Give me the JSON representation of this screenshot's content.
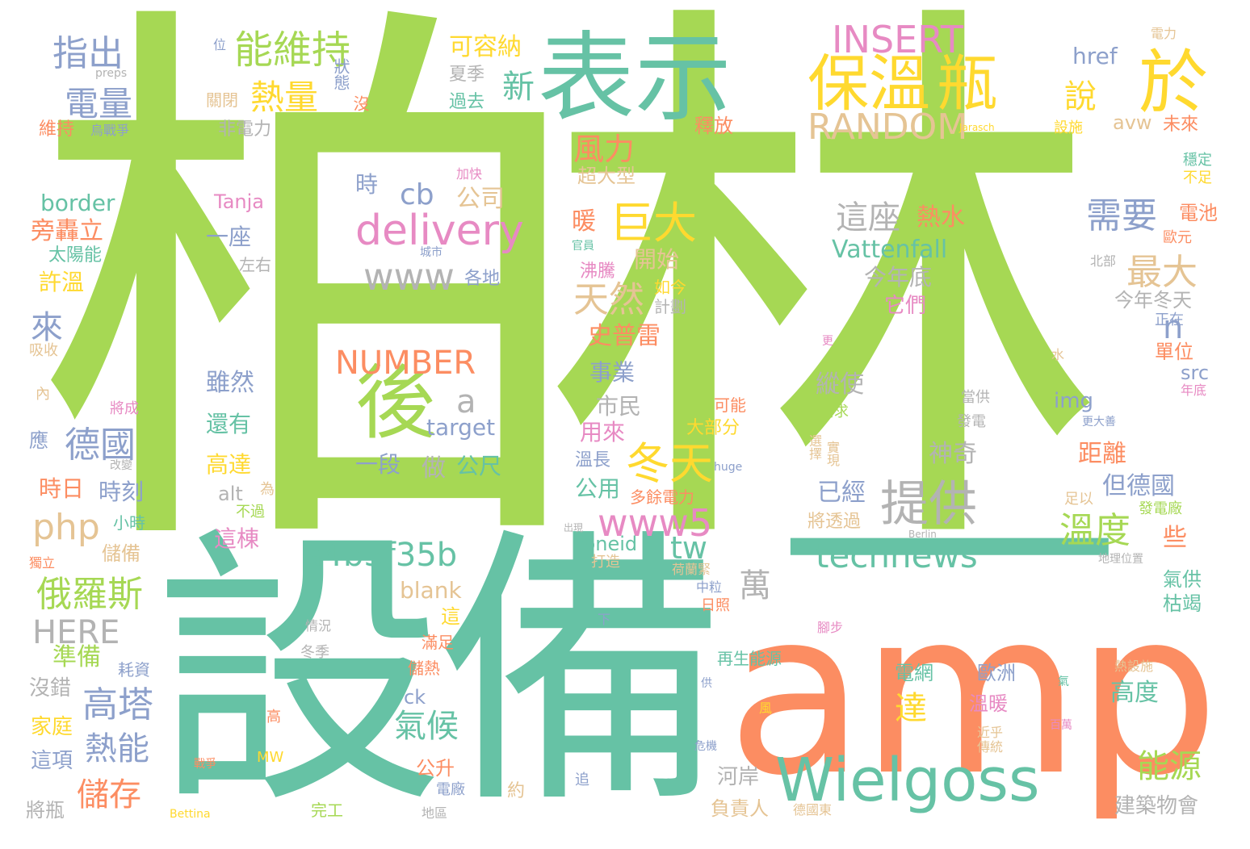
{
  "palette": {
    "green": "#a6d854",
    "teal": "#66c2a5",
    "orange": "#fc8d62",
    "blue": "#8da0cb",
    "pink": "#e78ac3",
    "yellow": "#ffd92f",
    "tan": "#e5c494",
    "gray": "#b3b3b3"
  },
  "words": [
    {
      "text": "柏林",
      "color": "#a6d854"
    },
    {
      "text": "設備",
      "color": "#66c2a5"
    },
    {
      "text": "amp",
      "color": "#fc8d62"
    },
    {
      "text": "一",
      "color": "#66c2a5"
    },
    {
      "text": "表示",
      "color": "#66c2a5"
    },
    {
      "text": "保溫",
      "color": "#ffd92f"
    },
    {
      "text": "瓶",
      "color": "#ffd92f"
    },
    {
      "text": "於",
      "color": "#ffd92f"
    },
    {
      "text": "Wielgoss",
      "color": "#66c2a5"
    },
    {
      "text": "後",
      "color": "#a6d854"
    },
    {
      "text": "delivery",
      "color": "#e78ac3"
    },
    {
      "text": "能維持",
      "color": "#a6d854"
    },
    {
      "text": "INSERT",
      "color": "#e78ac3"
    },
    {
      "text": "RANDOM",
      "color": "#e5c494"
    },
    {
      "text": "巨大",
      "color": "#ffd92f"
    },
    {
      "text": "冬天",
      "color": "#ffd92f"
    },
    {
      "text": "www5",
      "color": "#e78ac3"
    },
    {
      "text": "提供",
      "color": "#b3b3b3"
    },
    {
      "text": "technews",
      "color": "#66c2a5"
    },
    {
      "text": "a4b3f35b",
      "color": "#66c2a5"
    },
    {
      "text": "NUMBER",
      "color": "#fc8d62"
    },
    {
      "text": "www",
      "color": "#b3b3b3"
    },
    {
      "text": "指出",
      "color": "#8da0cb"
    },
    {
      "text": "電量",
      "color": "#8da0cb"
    },
    {
      "text": "熱量",
      "color": "#ffd92f"
    },
    {
      "text": "新",
      "color": "#66c2a5"
    },
    {
      "text": "說",
      "color": "#ffd92f"
    },
    {
      "text": "風力",
      "color": "#fc8d62"
    },
    {
      "text": "cb",
      "color": "#8da0cb"
    },
    {
      "text": "公司",
      "color": "#e5c494"
    },
    {
      "text": "時",
      "color": "#8da0cb"
    },
    {
      "text": "天然",
      "color": "#e5c494"
    },
    {
      "text": "最大",
      "color": "#e5c494"
    },
    {
      "text": "需要",
      "color": "#8da0cb"
    },
    {
      "text": "這座",
      "color": "#b3b3b3"
    },
    {
      "text": "熱水",
      "color": "#fc8d62"
    },
    {
      "text": "溫度",
      "color": "#a6d854"
    },
    {
      "text": "德國",
      "color": "#8da0cb"
    },
    {
      "text": "php",
      "color": "#e5c494"
    },
    {
      "text": "俄羅斯",
      "color": "#a6d854"
    },
    {
      "text": "HERE",
      "color": "#b3b3b3"
    },
    {
      "text": "高塔",
      "color": "#8da0cb"
    },
    {
      "text": "熱能",
      "color": "#8da0cb"
    },
    {
      "text": "儲存",
      "color": "#fc8d62"
    },
    {
      "text": "氣候",
      "color": "#66c2a5"
    },
    {
      "text": "能源",
      "color": "#a6d854"
    },
    {
      "text": "萬",
      "color": "#b3b3b3"
    },
    {
      "text": "tw",
      "color": "#66c2a5"
    },
    {
      "text": "a",
      "color": "#b3b3b3"
    },
    {
      "text": "n",
      "color": "#8da0cb"
    },
    {
      "text": "來",
      "color": "#8da0cb"
    },
    {
      "text": "Vattenfall",
      "color": "#66c2a5"
    },
    {
      "text": "今年底",
      "color": "#b3b3b3"
    },
    {
      "text": "開始",
      "color": "#e5c494"
    },
    {
      "text": "史普雷",
      "color": "#fc8d62"
    },
    {
      "text": "旁轟立",
      "color": "#fc8d62"
    },
    {
      "text": "border",
      "color": "#66c2a5"
    },
    {
      "text": "Tanja",
      "color": "#e78ac3"
    },
    {
      "text": "一座",
      "color": "#8da0cb"
    },
    {
      "text": "太陽能",
      "color": "#66c2a5"
    },
    {
      "text": "許溫",
      "color": "#ffd92f"
    },
    {
      "text": "可容納",
      "color": "#ffd92f"
    },
    {
      "text": "夏季",
      "color": "#b3b3b3"
    },
    {
      "text": "過去",
      "color": "#66c2a5"
    },
    {
      "text": "狀態",
      "color": "#8da0cb"
    },
    {
      "text": "沒",
      "color": "#fc8d62"
    },
    {
      "text": "關閉",
      "color": "#e5c494"
    },
    {
      "text": "非電力",
      "color": "#b3b3b3"
    },
    {
      "text": "維持",
      "color": "#fc8d62"
    },
    {
      "text": "烏戰爭",
      "color": "#8da0cb"
    },
    {
      "text": "位",
      "color": "#8da0cb"
    },
    {
      "text": "preps",
      "color": "#b3b3b3"
    },
    {
      "text": "href",
      "color": "#8da0cb"
    },
    {
      "text": "avw",
      "color": "#e5c494"
    },
    {
      "text": "未來",
      "color": "#fc8d62"
    },
    {
      "text": "釋放",
      "color": "#fc8d62"
    },
    {
      "text": "超大型",
      "color": "#e5c494"
    },
    {
      "text": "暖",
      "color": "#fc8d62"
    },
    {
      "text": "電力",
      "color": "#e5c494"
    },
    {
      "text": "Jarasch",
      "color": "#ffd92f"
    },
    {
      "text": "設施",
      "color": "#ffd92f"
    },
    {
      "text": "穩定",
      "color": "#66c2a5"
    },
    {
      "text": "不足",
      "color": "#ffd92f"
    },
    {
      "text": "電池",
      "color": "#fc8d62"
    },
    {
      "text": "歐元",
      "color": "#fc8d62"
    },
    {
      "text": "北部",
      "color": "#b3b3b3"
    },
    {
      "text": "今年冬天",
      "color": "#b3b3b3"
    },
    {
      "text": "正在",
      "color": "#8da0cb"
    },
    {
      "text": "單位",
      "color": "#fc8d62"
    },
    {
      "text": "src",
      "color": "#8da0cb"
    },
    {
      "text": "年底",
      "color": "#e78ac3"
    },
    {
      "text": "img",
      "color": "#8da0cb"
    },
    {
      "text": "更大善",
      "color": "#8da0cb"
    },
    {
      "text": "當供",
      "color": "#b3b3b3"
    },
    {
      "text": "發電",
      "color": "#b3b3b3"
    },
    {
      "text": "縱使",
      "color": "#b3b3b3"
    },
    {
      "text": "神奇",
      "color": "#b3b3b3"
    },
    {
      "text": "距離",
      "color": "#fc8d62"
    },
    {
      "text": "但德國",
      "color": "#8da0cb"
    },
    {
      "text": "已經",
      "color": "#8da0cb"
    },
    {
      "text": "選擇",
      "color": "#e5c494"
    },
    {
      "text": "實現",
      "color": "#e5c494"
    },
    {
      "text": "需求",
      "color": "#a6d854"
    },
    {
      "text": "可能",
      "color": "#fc8d62"
    },
    {
      "text": "大部分",
      "color": "#ffd92f"
    },
    {
      "text": "huge",
      "color": "#8da0cb"
    },
    {
      "text": "市民",
      "color": "#b3b3b3"
    },
    {
      "text": "事業",
      "color": "#8da0cb"
    },
    {
      "text": "用來",
      "color": "#e78ac3"
    },
    {
      "text": "溫長",
      "color": "#8da0cb"
    },
    {
      "text": "公用",
      "color": "#66c2a5"
    },
    {
      "text": "多餘電力",
      "color": "#fc8d62"
    },
    {
      "text": "沸騰",
      "color": "#e78ac3"
    },
    {
      "text": "如今",
      "color": "#ffd92f"
    },
    {
      "text": "計劃",
      "color": "#b3b3b3"
    },
    {
      "text": "它們",
      "color": "#e78ac3"
    },
    {
      "text": "官員",
      "color": "#66c2a5"
    },
    {
      "text": "左右",
      "color": "#b3b3b3"
    },
    {
      "text": "加快",
      "color": "#e78ac3"
    },
    {
      "text": "城市",
      "color": "#8da0cb"
    },
    {
      "text": "各地",
      "color": "#8da0cb"
    },
    {
      "text": "雖然",
      "color": "#8da0cb"
    },
    {
      "text": "還有",
      "color": "#66c2a5"
    },
    {
      "text": "高達",
      "color": "#ffd92f"
    },
    {
      "text": "一段",
      "color": "#8da0cb"
    },
    {
      "text": "做",
      "color": "#b3b3b3"
    },
    {
      "text": "公尺",
      "color": "#66c2a5"
    },
    {
      "text": "target",
      "color": "#8da0cb"
    },
    {
      "text": "alt",
      "color": "#b3b3b3"
    },
    {
      "text": "為",
      "color": "#e5c494"
    },
    {
      "text": "不過",
      "color": "#a6d854"
    },
    {
      "text": "這棟",
      "color": "#e78ac3"
    },
    {
      "text": "zoneid",
      "color": "#66c2a5"
    },
    {
      "text": "打造",
      "color": "#e5c494"
    },
    {
      "text": "blank",
      "color": "#e5c494"
    },
    {
      "text": "荷蘭緊",
      "color": "#e5c494"
    },
    {
      "text": "中粒",
      "color": "#8da0cb"
    },
    {
      "text": "日照",
      "color": "#fc8d62"
    },
    {
      "text": "時日",
      "color": "#fc8d62"
    },
    {
      "text": "時刻",
      "color": "#8da0cb"
    },
    {
      "text": "小時",
      "color": "#66c2a5"
    },
    {
      "text": "儲備",
      "color": "#e5c494"
    },
    {
      "text": "獨立",
      "color": "#fc8d62"
    },
    {
      "text": "準備",
      "color": "#a6d854"
    },
    {
      "text": "沒錯",
      "color": "#b3b3b3"
    },
    {
      "text": "耗資",
      "color": "#8da0cb"
    },
    {
      "text": "家庭",
      "color": "#ffd92f"
    },
    {
      "text": "這項",
      "color": "#8da0cb"
    },
    {
      "text": "將瓶",
      "color": "#b3b3b3"
    },
    {
      "text": "Bettina",
      "color": "#ffd92f"
    },
    {
      "text": "戰爭",
      "color": "#fc8d62"
    },
    {
      "text": "MW",
      "color": "#ffd92f"
    },
    {
      "text": "完工",
      "color": "#a6d854"
    },
    {
      "text": "地區",
      "color": "#b3b3b3"
    },
    {
      "text": "電廠",
      "color": "#8da0cb"
    },
    {
      "text": "約",
      "color": "#e5c494"
    },
    {
      "text": "追",
      "color": "#8da0cb"
    },
    {
      "text": "公升",
      "color": "#fc8d62"
    },
    {
      "text": "ck",
      "color": "#8da0cb"
    },
    {
      "text": "儲熱",
      "color": "#fc8d62"
    },
    {
      "text": "滿足",
      "color": "#fc8d62"
    },
    {
      "text": "這",
      "color": "#ffd92f"
    },
    {
      "text": "冬季",
      "color": "#b3b3b3"
    },
    {
      "text": "情況",
      "color": "#b3b3b3"
    },
    {
      "text": "高",
      "color": "#fc8d62"
    },
    {
      "text": "吸收",
      "color": "#e5c494"
    },
    {
      "text": "內",
      "color": "#e5c494"
    },
    {
      "text": "將成",
      "color": "#e78ac3"
    },
    {
      "text": "應",
      "color": "#8da0cb"
    },
    {
      "text": "改變",
      "color": "#b3b3b3"
    },
    {
      "text": "河岸",
      "color": "#b3b3b3"
    },
    {
      "text": "負責人",
      "color": "#e5c494"
    },
    {
      "text": "建築物會",
      "color": "#b3b3b3"
    },
    {
      "text": "德國東",
      "color": "#e5c494"
    },
    {
      "text": "危機",
      "color": "#8da0cb"
    },
    {
      "text": "風",
      "color": "#ffd92f"
    },
    {
      "text": "供",
      "color": "#8da0cb"
    },
    {
      "text": "再生能源",
      "color": "#66c2a5"
    },
    {
      "text": "電網",
      "color": "#66c2a5"
    },
    {
      "text": "溫暖",
      "color": "#e78ac3"
    },
    {
      "text": "歐洲",
      "color": "#8da0cb"
    },
    {
      "text": "高度",
      "color": "#66c2a5"
    },
    {
      "text": "熱設施",
      "color": "#e5c494"
    },
    {
      "text": "氣",
      "color": "#66c2a5"
    },
    {
      "text": "近乎",
      "color": "#e5c494"
    },
    {
      "text": "傳統",
      "color": "#e5c494"
    },
    {
      "text": "百萬",
      "color": "#e78ac3"
    },
    {
      "text": "達",
      "color": "#ffd92f"
    },
    {
      "text": "將透過",
      "color": "#e5c494"
    },
    {
      "text": "Berlin",
      "color": "#b3b3b3"
    },
    {
      "text": "足以",
      "color": "#e5c494"
    },
    {
      "text": "發電廠",
      "color": "#a6d854"
    },
    {
      "text": "地理位置",
      "color": "#b3b3b3"
    },
    {
      "text": "些",
      "color": "#fc8d62"
    },
    {
      "text": "氣供",
      "color": "#66c2a5"
    },
    {
      "text": "枯竭",
      "color": "#66c2a5"
    },
    {
      "text": "腳步",
      "color": "#e78ac3"
    },
    {
      "text": "水",
      "color": "#e5c494"
    },
    {
      "text": "更",
      "color": "#e78ac3"
    },
    {
      "text": "出現",
      "color": "#b3b3b3"
    },
    {
      "text": "下",
      "color": "#8da0cb"
    }
  ]
}
